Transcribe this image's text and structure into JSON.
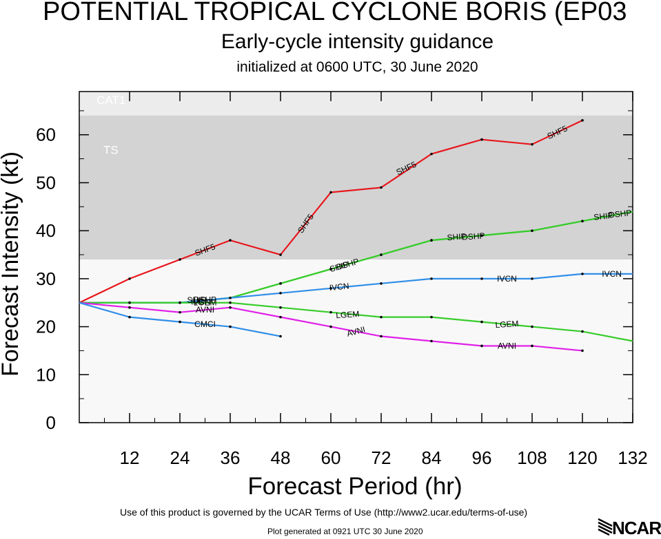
{
  "header": {
    "title": "POTENTIAL TROPICAL CYCLONE BORIS (EP03",
    "subtitle": "Early-cycle intensity guidance",
    "initialized": "initialized at 0600 UTC, 30 June 2020"
  },
  "footer": {
    "terms": "Use of this product is governed by the UCAR Terms of Use (http://www2.ucar.edu/terms-of-use)",
    "generated": "Plot generated at 0921 UTC   30 June 2020",
    "logo_text": "NCAR"
  },
  "chart_data": {
    "type": "line",
    "xlabel": "Forecast Period (hr)",
    "ylabel": "Forecast Intensity (kt)",
    "xlim": [
      0,
      132
    ],
    "ylim": [
      0,
      69
    ],
    "xticks": [
      12,
      24,
      36,
      48,
      60,
      72,
      84,
      96,
      108,
      120,
      132
    ],
    "yticks": [
      0,
      10,
      20,
      30,
      40,
      50,
      60
    ],
    "bands": [
      {
        "label": "CAT1",
        "from": 64,
        "to": 69,
        "color": "#ececec"
      },
      {
        "label": "TS",
        "from": 34,
        "to": 64,
        "color": "#d3d3d3"
      }
    ],
    "below_band_color": "#f8f8f8",
    "series": [
      {
        "name": "SHF5",
        "color": "#e8161c",
        "x": [
          0,
          12,
          24,
          36,
          48,
          60,
          72,
          84,
          96,
          108,
          120
        ],
        "y": [
          25,
          30,
          34,
          38,
          35,
          48,
          49,
          56,
          59,
          58,
          63
        ]
      },
      {
        "name": "DSHP",
        "color": "#36cc2a",
        "x": [
          0,
          12,
          24,
          36,
          48,
          60,
          72,
          84,
          96,
          108,
          120,
          132
        ],
        "y": [
          25,
          25,
          25,
          26,
          29,
          32,
          35,
          38,
          39,
          40,
          42,
          44
        ]
      },
      {
        "name": "SHIP",
        "color": "#36cc2a",
        "x": [
          0,
          12,
          24,
          36,
          48,
          60,
          72,
          84,
          96,
          108,
          120,
          132
        ],
        "y": [
          25,
          25,
          25,
          26,
          29,
          32,
          35,
          38,
          39,
          40,
          42,
          44
        ]
      },
      {
        "name": "IVCN",
        "color": "#2f8ee8",
        "x": [
          0,
          12,
          24,
          36,
          48,
          60,
          72,
          84,
          96,
          108,
          120,
          132
        ],
        "y": [
          25,
          25,
          25,
          26,
          27,
          28,
          29,
          30,
          30,
          30,
          31,
          31
        ]
      },
      {
        "name": "LGEM",
        "color": "#36cc2a",
        "x": [
          0,
          12,
          24,
          36,
          48,
          60,
          72,
          84,
          96,
          108,
          120,
          132
        ],
        "y": [
          25,
          25,
          25,
          25,
          24,
          23,
          22,
          22,
          21,
          20,
          19,
          17
        ]
      },
      {
        "name": "AVNI",
        "color": "#e020e8",
        "x": [
          0,
          12,
          24,
          36,
          48,
          60,
          72,
          84,
          96,
          108,
          120
        ],
        "y": [
          25,
          24,
          23,
          24,
          22,
          20,
          18,
          17,
          16,
          16,
          15
        ]
      },
      {
        "name": "CMCI",
        "color": "#2f8ee8",
        "x": [
          0,
          12,
          24,
          36,
          48
        ],
        "y": [
          25,
          22,
          21,
          20,
          18
        ]
      }
    ],
    "annotations": [
      {
        "text": "SHF5",
        "x": 30,
        "y": 36,
        "angle": -20
      },
      {
        "text": "SHF5",
        "x": 54,
        "y": 41.5,
        "angle": -55
      },
      {
        "text": "SHF5",
        "x": 78,
        "y": 53,
        "angle": -25
      },
      {
        "text": "SHF5",
        "x": 114,
        "y": 60.5,
        "angle": -25
      },
      {
        "text": "DSHP",
        "x": 64,
        "y": 33,
        "angle": -16
      },
      {
        "text": "SHIP",
        "x": 62,
        "y": 32.5,
        "angle": -16
      },
      {
        "text": "DSHP",
        "x": 94,
        "y": 38.8,
        "angle": -4
      },
      {
        "text": "SHIP",
        "x": 90,
        "y": 38.7,
        "angle": -4
      },
      {
        "text": "DSHP",
        "x": 129,
        "y": 43.5,
        "angle": -6
      },
      {
        "text": "SHIP",
        "x": 125,
        "y": 43,
        "angle": -6
      },
      {
        "text": "IVCN",
        "x": 62,
        "y": 28.3,
        "angle": -6
      },
      {
        "text": "IVCN",
        "x": 102,
        "y": 30,
        "angle": 0
      },
      {
        "text": "IVCN",
        "x": 127,
        "y": 31,
        "angle": 0
      },
      {
        "text": "LGEM",
        "x": 30,
        "y": 25,
        "angle": 0
      },
      {
        "text": "LGEM",
        "x": 64,
        "y": 22.5,
        "angle": -4
      },
      {
        "text": "LGEM",
        "x": 102,
        "y": 20.5,
        "angle": -4
      },
      {
        "text": "AVNI",
        "x": 30,
        "y": 23.5,
        "angle": 0
      },
      {
        "text": "AVNI",
        "x": 66,
        "y": 19,
        "angle": -15
      },
      {
        "text": "AVNI",
        "x": 102,
        "y": 16,
        "angle": 0
      },
      {
        "text": "CMCI",
        "x": 30,
        "y": 20.5,
        "angle": 0
      },
      {
        "text": "DSHP",
        "x": 30,
        "y": 25.6,
        "angle": 0
      },
      {
        "text": "SHIP",
        "x": 28,
        "y": 25.5,
        "angle": 0
      },
      {
        "text": "IVCN",
        "x": 29,
        "y": 25.2,
        "angle": 0
      }
    ]
  }
}
